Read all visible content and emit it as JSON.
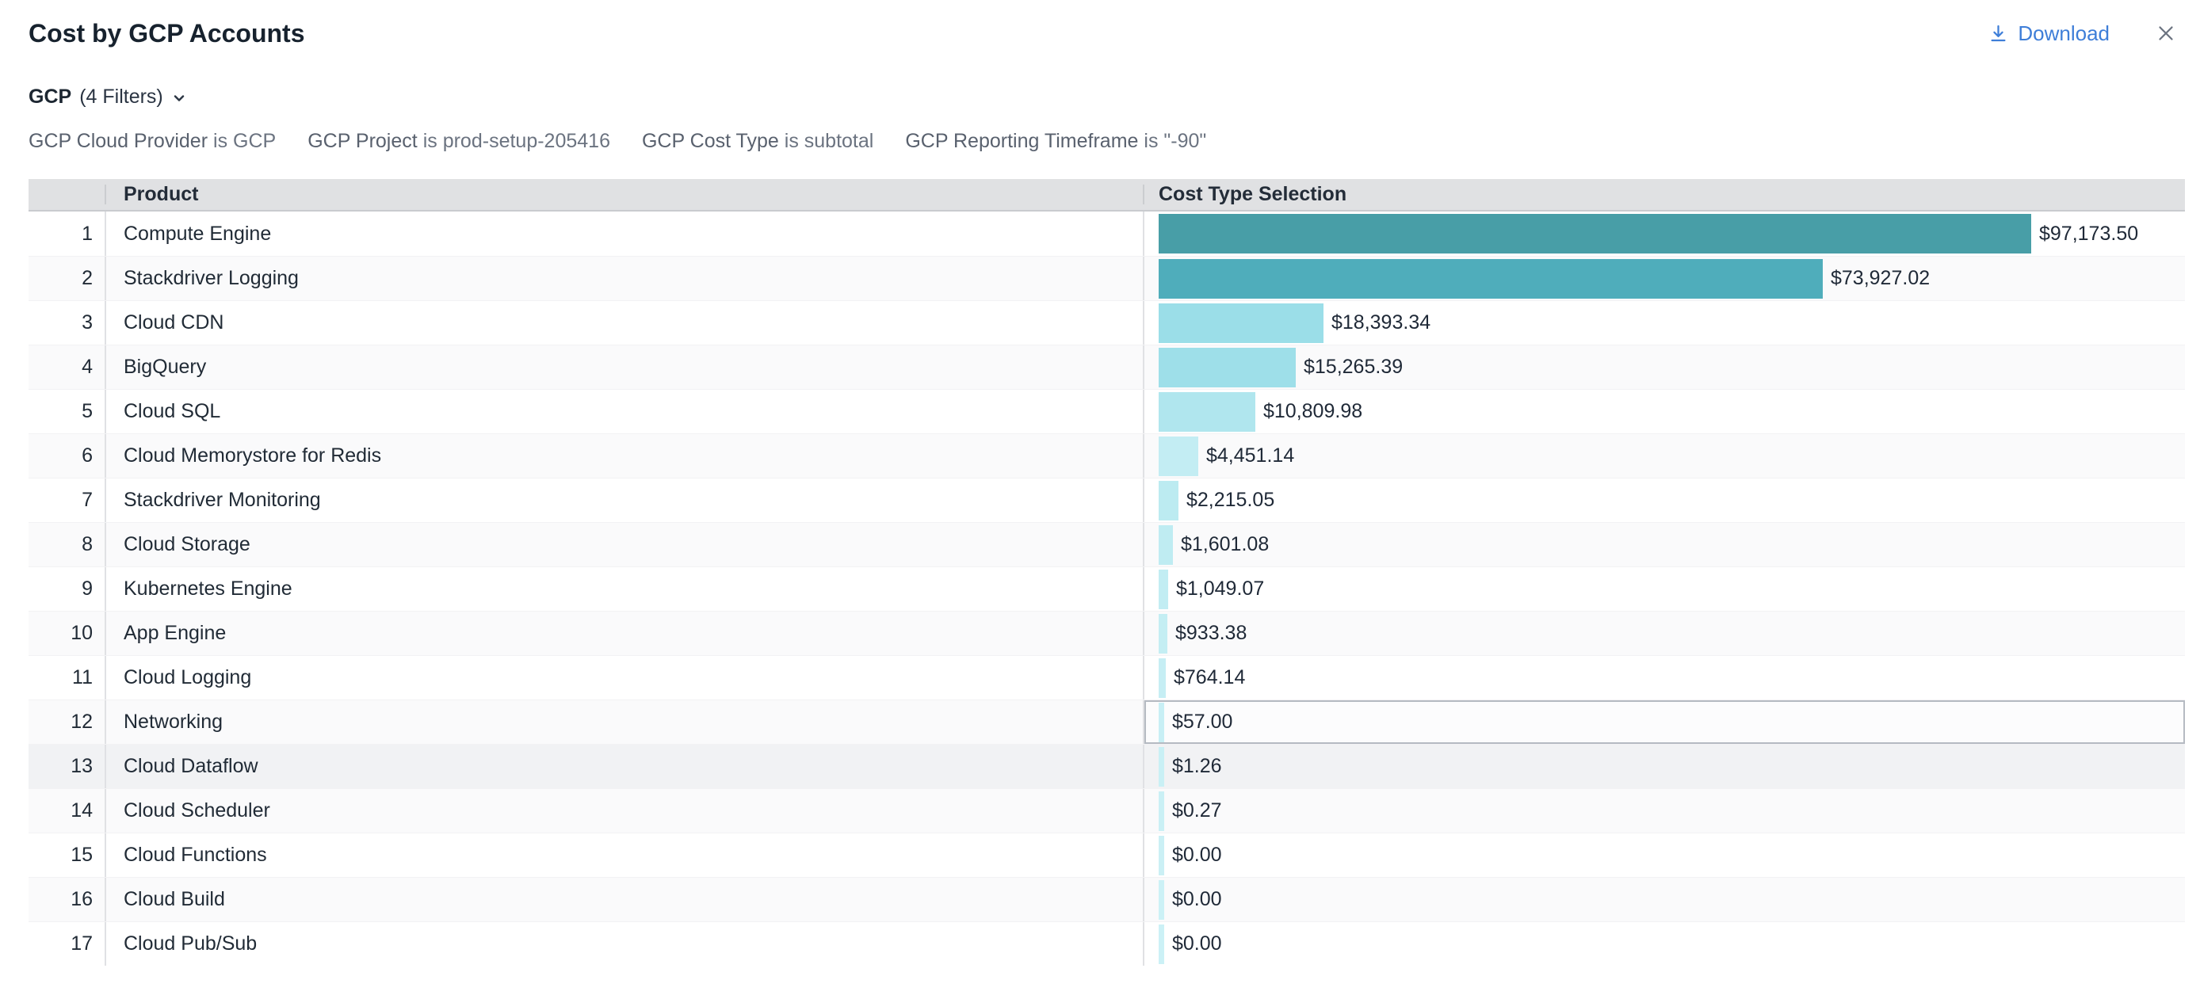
{
  "header": {
    "title": "Cost by GCP Accounts",
    "download_label": "Download"
  },
  "colors": {
    "accent_blue": "#3e7ed8",
    "header_gray": "#e0e1e3",
    "highlight_row": "#f1f2f4",
    "selected_cell_border": "#b5bac2"
  },
  "filters": {
    "summary_bold": "GCP",
    "summary_rest": "(4 Filters)",
    "items": [
      {
        "name": "GCP Cloud Provider",
        "condition": "is GCP"
      },
      {
        "name": "GCP Project",
        "condition": "is prod-setup-205416"
      },
      {
        "name": "GCP Cost Type",
        "condition": "is subtotal"
      },
      {
        "name": "GCP Reporting Timeframe",
        "condition": "is \"-90\""
      }
    ]
  },
  "table": {
    "columns": {
      "product": "Product",
      "cost": "Cost Type Selection"
    },
    "selected_row_index": 12,
    "highlighted_row_index": 13,
    "rows": [
      {
        "index": 1,
        "product": "Compute Engine",
        "value": 97173.5,
        "label": "$97,173.50",
        "bar_color": "#489ea7"
      },
      {
        "index": 2,
        "product": "Stackdriver Logging",
        "value": 73927.02,
        "label": "$73,927.02",
        "bar_color": "#4fadbb"
      },
      {
        "index": 3,
        "product": "Cloud CDN",
        "value": 18393.34,
        "label": "$18,393.34",
        "bar_color": "#9bdee8"
      },
      {
        "index": 4,
        "product": "BigQuery",
        "value": 15265.39,
        "label": "$15,265.39",
        "bar_color": "#9edfe9"
      },
      {
        "index": 5,
        "product": "Cloud SQL",
        "value": 10809.98,
        "label": "$10,809.98",
        "bar_color": "#b0e6ee"
      },
      {
        "index": 6,
        "product": "Cloud Memorystore for Redis",
        "value": 4451.14,
        "label": "$4,451.14",
        "bar_color": "#c3edf3"
      },
      {
        "index": 7,
        "product": "Stackdriver Monitoring",
        "value": 2215.05,
        "label": "$2,215.05",
        "bar_color": "#bcebf1"
      },
      {
        "index": 8,
        "product": "Cloud Storage",
        "value": 1601.08,
        "label": "$1,601.08",
        "bar_color": "#bfecf2"
      },
      {
        "index": 9,
        "product": "Kubernetes Engine",
        "value": 1049.07,
        "label": "$1,049.07",
        "bar_color": "#c2edf3"
      },
      {
        "index": 10,
        "product": "App Engine",
        "value": 933.38,
        "label": "$933.38",
        "bar_color": "#c4eef3"
      },
      {
        "index": 11,
        "product": "Cloud Logging",
        "value": 764.14,
        "label": "$764.14",
        "bar_color": "#c6eef4"
      },
      {
        "index": 12,
        "product": "Networking",
        "value": 57.0,
        "label": "$57.00",
        "bar_color": "#c8eff5"
      },
      {
        "index": 13,
        "product": "Cloud Dataflow",
        "value": 1.26,
        "label": "$1.26",
        "bar_color": "#c9f0f5"
      },
      {
        "index": 14,
        "product": "Cloud Scheduler",
        "value": 0.27,
        "label": "$0.27",
        "bar_color": "#caf0f5"
      },
      {
        "index": 15,
        "product": "Cloud Functions",
        "value": 0.0,
        "label": "$0.00",
        "bar_color": "#cbf0f5"
      },
      {
        "index": 16,
        "product": "Cloud Build",
        "value": 0.0,
        "label": "$0.00",
        "bar_color": "#ccf1f6"
      },
      {
        "index": 17,
        "product": "Cloud Pub/Sub",
        "value": 0.0,
        "label": "$0.00",
        "bar_color": "#ccf1f6"
      }
    ]
  },
  "chart_data": {
    "type": "bar",
    "title": "Cost by GCP Accounts",
    "orientation": "horizontal",
    "categories": [
      "Compute Engine",
      "Stackdriver Logging",
      "Cloud CDN",
      "BigQuery",
      "Cloud SQL",
      "Cloud Memorystore for Redis",
      "Stackdriver Monitoring",
      "Cloud Storage",
      "Kubernetes Engine",
      "App Engine",
      "Cloud Logging",
      "Networking",
      "Cloud Dataflow",
      "Cloud Scheduler",
      "Cloud Functions",
      "Cloud Build",
      "Cloud Pub/Sub"
    ],
    "values": [
      97173.5,
      73927.02,
      18393.34,
      15265.39,
      10809.98,
      4451.14,
      2215.05,
      1601.08,
      1049.07,
      933.38,
      764.14,
      57.0,
      1.26,
      0.27,
      0.0,
      0.0,
      0.0
    ],
    "series_label": "Cost Type Selection",
    "xlim": [
      0,
      97173.5
    ],
    "grid": false,
    "legend": false
  }
}
